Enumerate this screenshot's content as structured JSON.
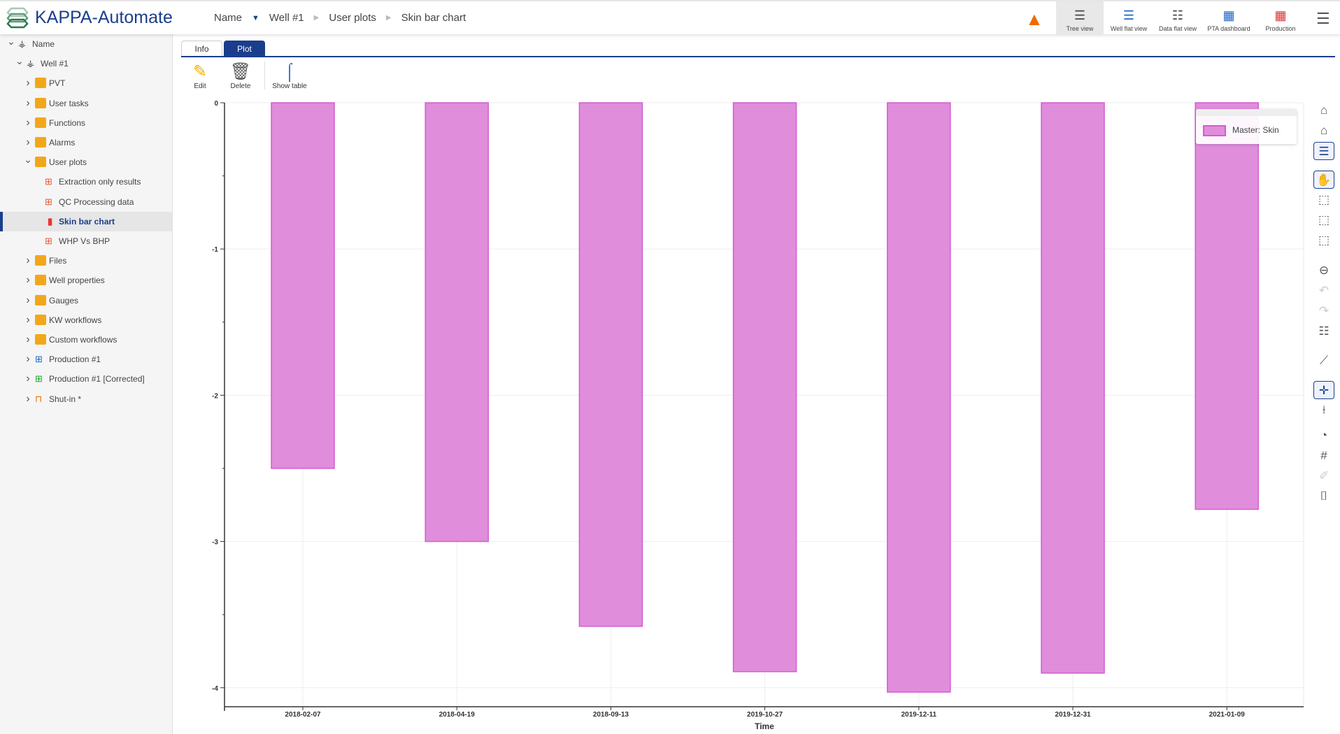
{
  "header": {
    "app_title": "KAPPA-Automate",
    "breadcrumb": [
      "Name",
      "Well #1",
      "User plots",
      "Skin bar chart"
    ],
    "warning_icon": "warning-triangle-icon",
    "views": [
      {
        "label": "Tree view",
        "icon": "tree-view-icon",
        "active": true
      },
      {
        "label": "Well flat view",
        "icon": "well-flat-view-icon"
      },
      {
        "label": "Data flat view",
        "icon": "data-flat-view-icon"
      },
      {
        "label": "PTA dashboard",
        "icon": "pta-dashboard-icon"
      },
      {
        "label": "Production",
        "icon": "production-icon"
      }
    ],
    "menu_icon": "hamburger-menu-icon"
  },
  "sidebar": {
    "items": [
      {
        "label": "Name",
        "level": 0,
        "expanded": true,
        "icon": "well-tower-icon"
      },
      {
        "label": "Well #1",
        "level": 1,
        "expanded": true,
        "icon": "well-tower-icon"
      },
      {
        "label": "PVT",
        "level": 2,
        "icon": "folder-pvt-icon"
      },
      {
        "label": "User tasks",
        "level": 2,
        "icon": "folder-user-icon"
      },
      {
        "label": "Functions",
        "level": 2,
        "icon": "folder-fx-icon"
      },
      {
        "label": "Alarms",
        "level": 2,
        "icon": "folder-alarm-icon"
      },
      {
        "label": "User plots",
        "level": 2,
        "expanded": true,
        "icon": "folder-plot-icon"
      },
      {
        "label": "Extraction only results",
        "level": 3,
        "icon": "plot-icon"
      },
      {
        "label": "QC Processing data",
        "level": 3,
        "icon": "plot-icon"
      },
      {
        "label": "Skin bar chart",
        "level": 3,
        "icon": "bar-chart-icon",
        "selected": true
      },
      {
        "label": "WHP Vs BHP",
        "level": 3,
        "icon": "plot-icon"
      },
      {
        "label": "Files",
        "level": 2,
        "icon": "folder-file-icon"
      },
      {
        "label": "Well properties",
        "level": 2,
        "icon": "folder-well-icon"
      },
      {
        "label": "Gauges",
        "level": 2,
        "icon": "folder-gauge-icon"
      },
      {
        "label": "KW workflows",
        "level": 2,
        "icon": "folder-workflow-icon"
      },
      {
        "label": "Custom workflows",
        "level": 2,
        "icon": "folder-workflow-icon"
      },
      {
        "label": "Production #1",
        "level": 2,
        "icon": "production-data-icon"
      },
      {
        "label": "Production #1 [Corrected]",
        "level": 2,
        "icon": "production-corrected-icon"
      },
      {
        "label": "Shut-in *",
        "level": 2,
        "icon": "shut-in-icon"
      }
    ]
  },
  "tabs": [
    {
      "label": "Info"
    },
    {
      "label": "Plot",
      "active": true
    }
  ],
  "toolbar": {
    "edit": "Edit",
    "delete": "Delete",
    "show_table": "Show table"
  },
  "legend": {
    "label": "Master: Skin"
  },
  "colors": {
    "accent": "#1a3e8c",
    "bar_fill": "#e08ddc",
    "bar_stroke": "#d45cd0",
    "warning": "#ef6c00"
  },
  "chart_data": {
    "type": "bar",
    "xlabel": "Time",
    "ylabel": "",
    "categories": [
      "2018-02-07",
      "2018-04-19",
      "2018-09-13",
      "2019-10-27",
      "2019-12-11",
      "2019-12-31",
      "2021-01-09"
    ],
    "series": [
      {
        "name": "Master: Skin",
        "values": [
          -2.5,
          -3.0,
          -3.58,
          -3.89,
          -4.03,
          -3.9,
          -2.78
        ]
      }
    ],
    "ylim": [
      -4.13,
      0
    ],
    "yticks": [
      0,
      -1,
      -2,
      -3,
      -4
    ],
    "grid": true,
    "legend_position": "top-right"
  },
  "plot_tools": [
    "home-icon",
    "home-fit-icon",
    "legend-toggle-icon",
    "pan-hand-icon",
    "zoom-box-icon",
    "zoom-y-icon",
    "zoom-x-icon",
    "zoom-out-icon",
    "undo-zoom-icon",
    "redo-zoom-icon",
    "zoom-legend-icon",
    "curve-icon",
    "crosshair-icon",
    "tracker-icon",
    "time-marker-icon",
    "grid-icon",
    "brush-icon",
    "camera-icon"
  ]
}
